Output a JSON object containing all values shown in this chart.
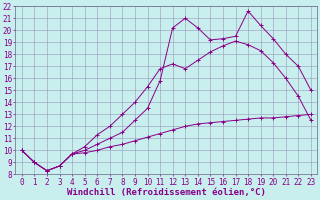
{
  "xlabel": "Windchill (Refroidissement éolien,°C)",
  "bg_color": "#c8eeee",
  "line_color": "#880088",
  "xlim": [
    -0.5,
    23.5
  ],
  "ylim": [
    8,
    22
  ],
  "xticks": [
    0,
    1,
    2,
    3,
    4,
    5,
    6,
    7,
    8,
    9,
    10,
    11,
    12,
    13,
    14,
    15,
    16,
    17,
    18,
    19,
    20,
    21,
    22,
    23
  ],
  "yticks": [
    8,
    9,
    10,
    11,
    12,
    13,
    14,
    15,
    16,
    17,
    18,
    19,
    20,
    21,
    22
  ],
  "line1_x": [
    0,
    1,
    2,
    3,
    4,
    5,
    6,
    7,
    8,
    9,
    10,
    11,
    12,
    13,
    14,
    15,
    16,
    17,
    18,
    19,
    20,
    21,
    22,
    23
  ],
  "line1_y": [
    10,
    9,
    8.3,
    8.7,
    9.7,
    9.8,
    10.0,
    10.3,
    10.5,
    10.8,
    11.1,
    11.4,
    11.7,
    12.0,
    12.2,
    12.3,
    12.4,
    12.5,
    12.6,
    12.7,
    12.7,
    12.8,
    12.9,
    13.0
  ],
  "line2_x": [
    0,
    1,
    2,
    3,
    4,
    5,
    6,
    7,
    8,
    9,
    10,
    11,
    12,
    13,
    14,
    15,
    16,
    17,
    18,
    19,
    20,
    21,
    22,
    23
  ],
  "line2_y": [
    10,
    9,
    8.3,
    8.7,
    9.7,
    10.3,
    11.3,
    12.0,
    13.0,
    14.0,
    15.3,
    16.8,
    17.2,
    16.8,
    17.5,
    18.2,
    18.7,
    19.1,
    18.8,
    18.3,
    17.3,
    16.0,
    14.5,
    12.5
  ],
  "line3_x": [
    0,
    1,
    2,
    3,
    4,
    5,
    6,
    7,
    8,
    9,
    10,
    11,
    12,
    13,
    14,
    15,
    16,
    17,
    18,
    19,
    20,
    21,
    22,
    23
  ],
  "line3_y": [
    10,
    9,
    8.3,
    8.7,
    9.7,
    10.0,
    10.5,
    11.0,
    11.5,
    12.5,
    13.5,
    15.8,
    20.2,
    21.0,
    20.2,
    19.2,
    19.3,
    19.5,
    21.6,
    20.4,
    19.3,
    18.0,
    17.0,
    15.0
  ],
  "grid_color": "#aaaacc",
  "tick_fontsize": 5.5,
  "xlabel_fontsize": 6.5
}
